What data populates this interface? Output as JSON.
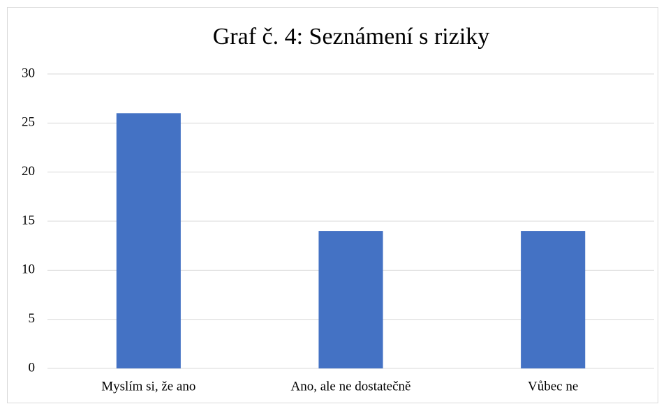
{
  "chart_data": {
    "type": "bar",
    "title": "Graf č. 4: Seznámení s riziky",
    "categories": [
      "Myslím si, že ano",
      "Ano, ale ne dostatečně",
      "Vůbec ne"
    ],
    "values": [
      26,
      14,
      14
    ],
    "color": "#4472c4",
    "ylim": [
      0,
      30
    ],
    "yticks": [
      0,
      5,
      10,
      15,
      20,
      25,
      30
    ],
    "grid": true
  }
}
